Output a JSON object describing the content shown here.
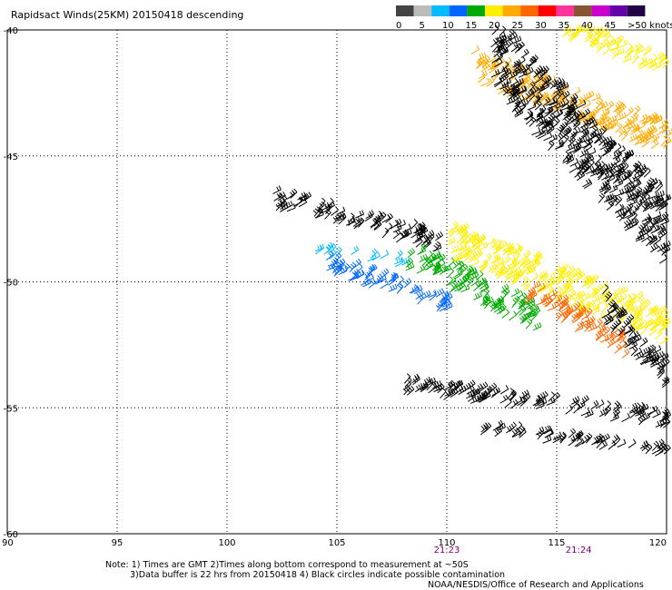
{
  "chart_data": {
    "type": "wind_barbs",
    "title": "Rapidsact Winds(25KM) 20150418 descending",
    "x_ticks": [
      "90",
      "95",
      "100",
      "105",
      "110",
      "115",
      "120"
    ],
    "y_ticks": [
      "-40",
      "-45",
      "-50",
      "-55",
      "-60"
    ],
    "xlim": [
      90,
      120
    ],
    "ylim": [
      -60,
      -40
    ],
    "grid": true,
    "legend": {
      "placement": "top-right",
      "labels": [
        "0",
        "5",
        "10",
        "15",
        "20",
        "25",
        "30",
        "35",
        "40",
        "45",
        ">50 knots"
      ],
      "colors": [
        "#444444",
        "#bbbbbb",
        "#00bbff",
        "#0066ff",
        "#00aa00",
        "#ffee00",
        "#ffaa00",
        "#ff6600",
        "#ff0000",
        "#ff3399",
        "#885533",
        "#cc00cc",
        "#6600aa",
        "#220044"
      ]
    },
    "time_labels": [
      {
        "text": "21:23",
        "lon": 110
      },
      {
        "text": "21:24",
        "lon": 116
      }
    ],
    "swaths": [
      {
        "lon": [
          102.0,
          109.5
        ],
        "lat": [
          -46.8,
          -48.8
        ],
        "color": "#000000"
      },
      {
        "lon": [
          103.5,
          108.0
        ],
        "lat": [
          -48.8,
          -49.4
        ],
        "color": "#00bbff"
      },
      {
        "lon": [
          104.5,
          110.0
        ],
        "lat": [
          -49.4,
          -51.3
        ],
        "color": "#0066ff"
      },
      {
        "lon": [
          108.0,
          114.0
        ],
        "lat": [
          -49.0,
          -52.0
        ],
        "color": "#00aa00"
      },
      {
        "lon": [
          110.0,
          120.0
        ],
        "lat": [
          -48.5,
          -52.5
        ],
        "color": "#ffee00"
      },
      {
        "lon": [
          111.0,
          120.0
        ],
        "lat": [
          -41.5,
          -45.0
        ],
        "color": "#ffaa00"
      },
      {
        "lon": [
          112.0,
          120.0
        ],
        "lat": [
          -41.0,
          -49.5
        ],
        "color": "#000000"
      },
      {
        "lon": [
          115.0,
          120.0
        ],
        "lat": [
          -39.9,
          -42.0
        ],
        "color": "#ffee00"
      },
      {
        "lon": [
          113.5,
          118.0
        ],
        "lat": [
          -50.5,
          -53.0
        ],
        "color": "#ff6600"
      },
      {
        "lon": [
          117.0,
          120.0
        ],
        "lat": [
          -51.0,
          -54.5
        ],
        "color": "#000000"
      },
      {
        "lon": [
          108.0,
          120.0
        ],
        "lat": [
          -54.2,
          -55.8
        ],
        "color": "#000000"
      },
      {
        "lon": [
          111.5,
          120.0
        ],
        "lat": [
          -55.9,
          -57.0
        ],
        "color": "#000000"
      }
    ]
  },
  "notes": {
    "line1": "Note: 1) Times are GMT 2)Times along bottom correspond to measurement at ~50S",
    "line2": "3)Data buffer is 22 hrs from 20150418 4) Black circles indicate possible contamination",
    "credit": "NOAA/NESDIS/Office of Research and Applications"
  }
}
